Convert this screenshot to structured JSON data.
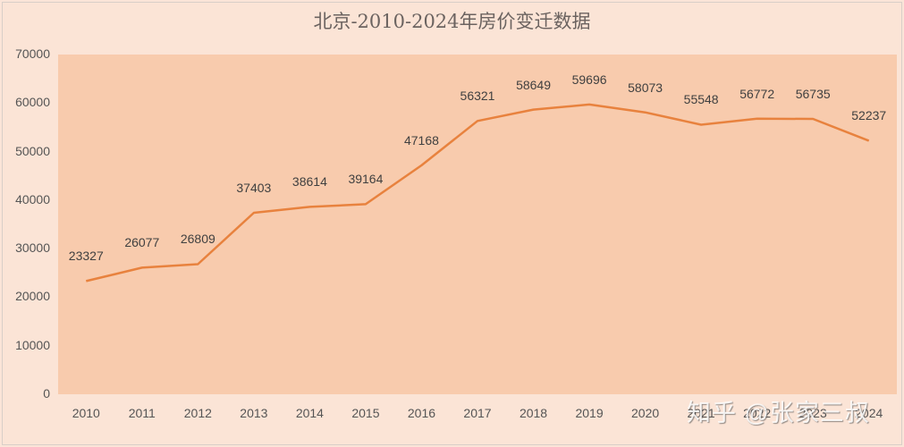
{
  "chart_data": {
    "type": "line",
    "title": "北京-2010-2024年房价变迁数据",
    "xlabel": "",
    "ylabel": "",
    "categories": [
      "2010",
      "2011",
      "2012",
      "2013",
      "2014",
      "2015",
      "2016",
      "2017",
      "2018",
      "2019",
      "2020",
      "2021",
      "2022",
      "2023",
      "2024"
    ],
    "series": [
      {
        "name": "房价",
        "values": [
          23327,
          26077,
          26809,
          37403,
          38614,
          39164,
          47168,
          56321,
          58649,
          59696,
          58073,
          55548,
          56772,
          56735,
          52237
        ]
      }
    ],
    "ylim": [
      0,
      70000
    ],
    "yticks": [
      "0",
      "10000",
      "20000",
      "30000",
      "40000",
      "50000",
      "60000",
      "70000"
    ],
    "grid": false,
    "legend": "none",
    "data_labels": true,
    "colors": {
      "line": "#e8823e",
      "plot_bg": "#f8cbad",
      "chart_bg": "#fbe5d8"
    }
  },
  "watermark": "知乎 @张家三叔"
}
